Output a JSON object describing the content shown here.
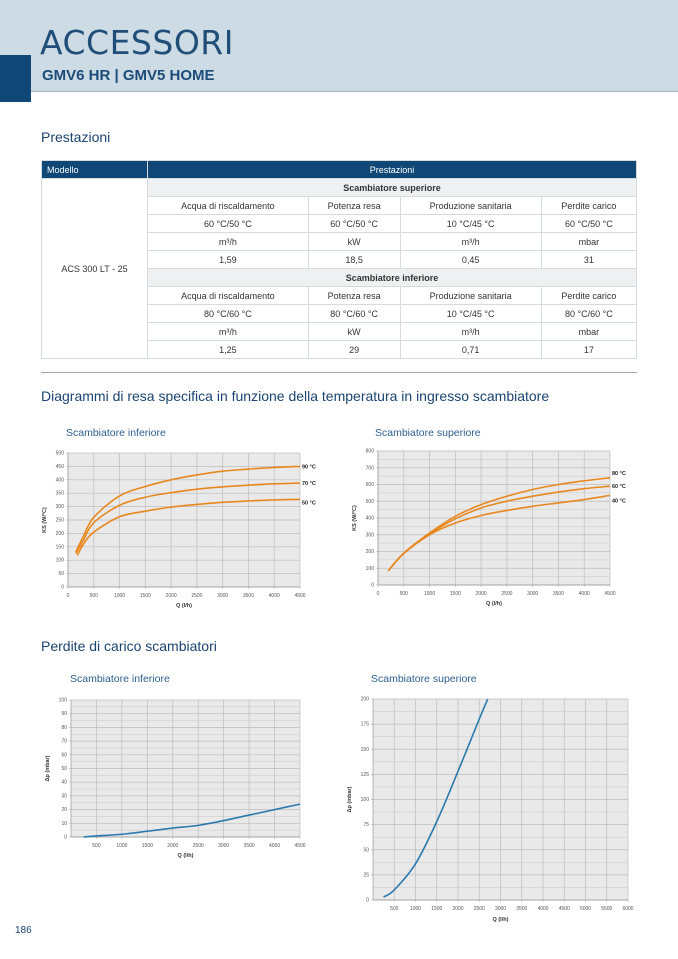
{
  "header": {
    "title": "ACCESSORI",
    "subtitle": "GMV6 HR | GMV5 HOME"
  },
  "sections": {
    "prestazioni": "Prestazioni",
    "diagrammi": "Diagrammi di resa specifica in funzione della temperatura in ingresso scambiatore",
    "perdite": "Perdite di carico scambiatori"
  },
  "table": {
    "head_model": "Modello",
    "head_perf": "Prestazioni",
    "model": "ACS 300 LT - 25",
    "upper": {
      "title": "Scambiatore superiore",
      "rows": [
        [
          "Acqua di riscaldamento",
          "Potenza resa",
          "Produzione sanitaria",
          "Perdite carico"
        ],
        [
          "60 °C/50 °C",
          "60 °C/50 °C",
          "10 °C/45 °C",
          "60 °C/50 °C"
        ],
        [
          "m³/h",
          "kW",
          "m³/h",
          "mbar"
        ],
        [
          "1,59",
          "18,5",
          "0,45",
          "31"
        ]
      ]
    },
    "lower": {
      "title": "Scambiatore inferiore",
      "rows": [
        [
          "Acqua di riscaldamento",
          "Potenza resa",
          "Produzione sanitaria",
          "Perdite carico"
        ],
        [
          "80 °C/60 °C",
          "80 °C/60 °C",
          "10 °C/45 °C",
          "80 °C/60 °C"
        ],
        [
          "m³/h",
          "kW",
          "m³/h",
          "mbar"
        ],
        [
          "1,25",
          "29",
          "0,71",
          "17"
        ]
      ]
    }
  },
  "page_number": "186",
  "chart_data": [
    {
      "type": "line",
      "title": "Scambiatore inferiore",
      "xlabel": "Q (l/h)",
      "ylabel": "KS (W/°C)",
      "xlim": [
        0,
        4500
      ],
      "ylim": [
        0,
        500
      ],
      "xticks": [
        0,
        500,
        1000,
        1500,
        2000,
        2500,
        3000,
        3500,
        4000,
        4500
      ],
      "yticks": [
        0,
        50,
        100,
        150,
        200,
        250,
        300,
        350,
        400,
        450,
        500
      ],
      "color": "#e8871e",
      "series": [
        {
          "name": "90 °C",
          "x": [
            150,
            300,
            500,
            1000,
            1500,
            2000,
            2500,
            3000,
            3500,
            4000,
            4500
          ],
          "y": [
            130,
            190,
            260,
            340,
            375,
            400,
            418,
            432,
            440,
            446,
            450
          ]
        },
        {
          "name": "70 °C",
          "x": [
            150,
            300,
            500,
            1000,
            1500,
            2000,
            2500,
            3000,
            3500,
            4000,
            4500
          ],
          "y": [
            125,
            175,
            240,
            305,
            335,
            352,
            365,
            374,
            380,
            385,
            388
          ]
        },
        {
          "name": "50 °C",
          "x": [
            180,
            300,
            500,
            1000,
            1500,
            2000,
            2500,
            3000,
            3500,
            4000,
            4500
          ],
          "y": [
            118,
            160,
            205,
            262,
            283,
            298,
            308,
            316,
            321,
            325,
            327
          ]
        }
      ]
    },
    {
      "type": "line",
      "title": "Scambiatore superiore",
      "xlabel": "Q (l/h)",
      "ylabel": "KS (W/°C)",
      "xlim": [
        0,
        4500
      ],
      "ylim": [
        0,
        800
      ],
      "xticks": [
        0,
        500,
        1000,
        1500,
        2000,
        2500,
        3000,
        3500,
        4000,
        4500
      ],
      "yticks": [
        0,
        100,
        200,
        300,
        400,
        500,
        600,
        700,
        800
      ],
      "color": "#e8871e",
      "series": [
        {
          "name": "80 °C",
          "x": [
            200,
            500,
            1000,
            1500,
            2000,
            2500,
            3000,
            3500,
            4000,
            4500
          ],
          "y": [
            85,
            190,
            310,
            410,
            480,
            530,
            570,
            600,
            622,
            640
          ]
        },
        {
          "name": "60 °C",
          "x": [
            200,
            500,
            1000,
            1500,
            2000,
            2500,
            3000,
            3500,
            4000,
            4500
          ],
          "y": [
            85,
            190,
            305,
            395,
            460,
            500,
            530,
            555,
            575,
            590
          ]
        },
        {
          "name": "40 °C",
          "x": [
            200,
            500,
            1000,
            1500,
            2000,
            2500,
            3000,
            3500,
            4000,
            4500
          ],
          "y": [
            85,
            188,
            300,
            370,
            415,
            445,
            470,
            490,
            510,
            535
          ]
        }
      ]
    },
    {
      "type": "line",
      "title": "Scambiatore inferiore",
      "xlabel": "Q (l/h)",
      "ylabel": "Δp (mbar)",
      "xlim": [
        0,
        4500
      ],
      "ylim": [
        0,
        100
      ],
      "xticks": [
        500,
        1000,
        1500,
        2000,
        2500,
        3000,
        3500,
        4000,
        4500
      ],
      "yticks": [
        0,
        10,
        20,
        30,
        40,
        50,
        60,
        70,
        80,
        90,
        100
      ],
      "color": "#2a7ab0",
      "series": [
        {
          "name": "",
          "x": [
            250,
            500,
            1000,
            1500,
            2000,
            2500,
            3000,
            3500,
            4000,
            4500
          ],
          "y": [
            0,
            0.8,
            2,
            4.2,
            6.5,
            8.5,
            12,
            16,
            20,
            24
          ]
        }
      ]
    },
    {
      "type": "line",
      "title": "Scambiatore superiore",
      "xlabel": "Q (l/h)",
      "ylabel": "Δp (mbar)",
      "xlim": [
        0,
        6000
      ],
      "ylim": [
        0,
        200
      ],
      "xticks": [
        500,
        1000,
        1500,
        2000,
        2500,
        3000,
        3500,
        4000,
        4500,
        5000,
        5500,
        6000
      ],
      "yticks": [
        0,
        25,
        50,
        75,
        100,
        125,
        150,
        175,
        200
      ],
      "color": "#2a7ab0",
      "series": [
        {
          "name": "",
          "x": [
            250,
            500,
            1000,
            1500,
            2000,
            2500,
            2700
          ],
          "y": [
            3,
            10,
            36,
            78,
            128,
            180,
            200
          ]
        }
      ]
    }
  ]
}
